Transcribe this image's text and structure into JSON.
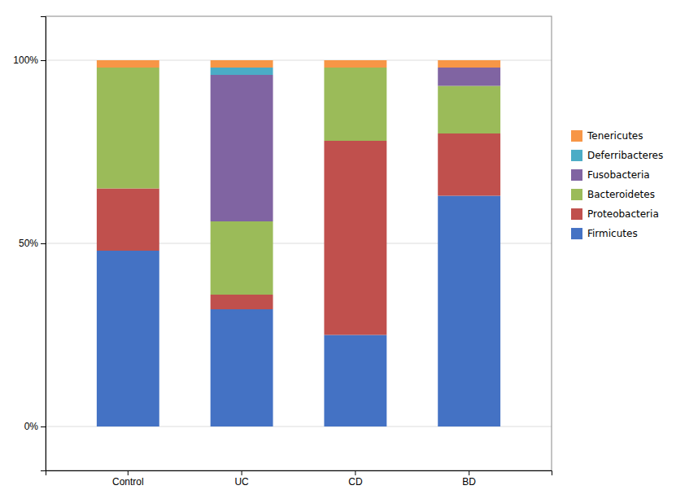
{
  "chart_data": {
    "type": "bar",
    "stacked": true,
    "grid": true,
    "legend": "right",
    "categories": [
      "Control",
      "UC",
      "CD",
      "BD"
    ],
    "series": [
      {
        "name": "Firmicutes",
        "color": "#4472C4",
        "values": [
          48,
          32,
          25,
          63
        ]
      },
      {
        "name": "Proteobacteria",
        "color": "#C0504D",
        "values": [
          17,
          4,
          53,
          17
        ]
      },
      {
        "name": "Bacteroidetes",
        "color": "#9BBB59",
        "values": [
          33,
          20,
          20,
          13
        ]
      },
      {
        "name": "Fusobacteria",
        "color": "#8064A2",
        "values": [
          0,
          40,
          0,
          5
        ]
      },
      {
        "name": "Deferribacteres",
        "color": "#4BACC6",
        "values": [
          0,
          2,
          0,
          0
        ]
      },
      {
        "name": "Tenericutes",
        "color": "#F79646",
        "values": [
          2,
          2,
          2,
          2
        ]
      }
    ],
    "ylim": [
      -12,
      112
    ],
    "yticks": [
      {
        "value": 0,
        "label": "0%"
      },
      {
        "value": 50,
        "label": "50%"
      },
      {
        "value": 100,
        "label": "100%"
      }
    ]
  }
}
